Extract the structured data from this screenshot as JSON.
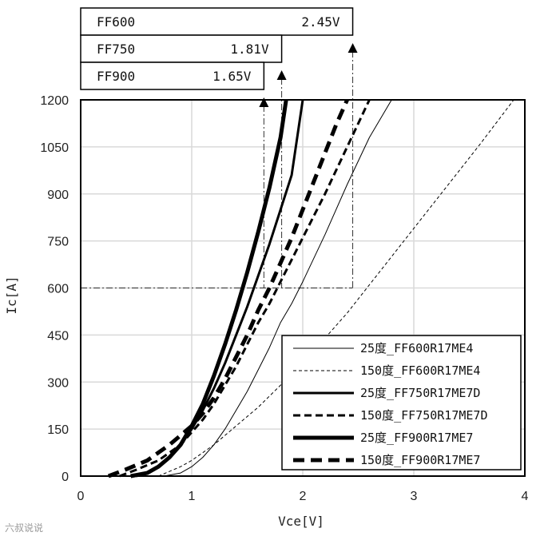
{
  "chart_data": {
    "type": "line",
    "xlabel": "Vce[V]",
    "ylabel": "Ic[A]",
    "xlim": [
      0,
      4
    ],
    "ylim": [
      0,
      1200
    ],
    "xticks": [
      0,
      1,
      2,
      3,
      4
    ],
    "yticks": [
      0,
      150,
      300,
      450,
      600,
      750,
      900,
      1050,
      1200
    ],
    "grid": true,
    "legend_position": "bottom-right",
    "reference_current": 600,
    "annotations": [
      {
        "label": "FF600",
        "value_text": "2.45V",
        "vce": 2.45
      },
      {
        "label": "FF750",
        "value_text": "1.81V",
        "vce": 1.81
      },
      {
        "label": "FF900",
        "value_text": "1.65V",
        "vce": 1.65
      }
    ],
    "series": [
      {
        "name": "25度_FF600R17ME4",
        "style": "solid",
        "weight": "thin",
        "x": [
          0.75,
          0.9,
          1.0,
          1.1,
          1.2,
          1.3,
          1.4,
          1.5,
          1.6,
          1.7,
          1.8,
          1.9,
          2.0,
          2.2,
          2.4,
          2.6,
          2.8
        ],
        "y": [
          0,
          10,
          30,
          60,
          100,
          150,
          210,
          270,
          340,
          410,
          490,
          550,
          620,
          770,
          930,
          1080,
          1200
        ]
      },
      {
        "name": "150度_FF600R17ME4",
        "style": "dashed",
        "weight": "thin",
        "x": [
          0.7,
          0.9,
          1.0,
          1.2,
          1.4,
          1.6,
          1.8,
          2.0,
          2.2,
          2.4,
          2.6,
          2.8,
          3.0,
          3.2,
          3.4,
          3.6,
          3.9
        ],
        "y": [
          0,
          30,
          50,
          100,
          160,
          220,
          290,
          360,
          440,
          520,
          610,
          700,
          790,
          880,
          970,
          1060,
          1200
        ]
      },
      {
        "name": "25度_FF750R17ME7D",
        "style": "solid",
        "weight": "medium",
        "x": [
          0.5,
          0.6,
          0.7,
          0.8,
          0.9,
          1.0,
          1.1,
          1.2,
          1.3,
          1.4,
          1.5,
          1.6,
          1.7,
          1.8,
          1.9,
          2.0
        ],
        "y": [
          0,
          10,
          30,
          60,
          100,
          150,
          210,
          280,
          360,
          450,
          540,
          640,
          740,
          850,
          960,
          1200
        ]
      },
      {
        "name": "150度_FF750R17ME7D",
        "style": "dashed",
        "weight": "medium",
        "x": [
          0.35,
          0.5,
          0.7,
          0.9,
          1.0,
          1.1,
          1.2,
          1.3,
          1.4,
          1.5,
          1.6,
          1.7,
          1.8,
          1.9,
          2.0,
          2.2,
          2.4,
          2.6
        ],
        "y": [
          0,
          20,
          50,
          100,
          140,
          180,
          230,
          290,
          350,
          420,
          490,
          550,
          620,
          690,
          760,
          900,
          1050,
          1200
        ]
      },
      {
        "name": "25度_FF900R17ME7",
        "style": "solid",
        "weight": "thick",
        "x": [
          0.45,
          0.6,
          0.7,
          0.8,
          0.9,
          1.0,
          1.1,
          1.2,
          1.3,
          1.4,
          1.5,
          1.6,
          1.7,
          1.8,
          1.85
        ],
        "y": [
          0,
          10,
          30,
          60,
          100,
          160,
          230,
          320,
          420,
          530,
          650,
          780,
          920,
          1080,
          1200
        ]
      },
      {
        "name": "150度_FF900R17ME7",
        "style": "dashed",
        "weight": "thick",
        "x": [
          0.25,
          0.4,
          0.6,
          0.8,
          1.0,
          1.1,
          1.2,
          1.3,
          1.4,
          1.5,
          1.6,
          1.7,
          1.8,
          1.9,
          2.0,
          2.1,
          2.2,
          2.3,
          2.4
        ],
        "y": [
          0,
          20,
          50,
          100,
          160,
          200,
          250,
          310,
          380,
          450,
          530,
          600,
          680,
          760,
          850,
          940,
          1030,
          1120,
          1200
        ]
      }
    ]
  },
  "watermark": "六叔说说"
}
